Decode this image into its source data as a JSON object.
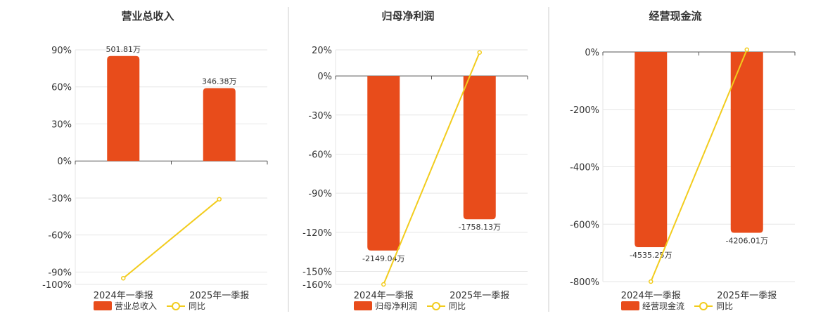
{
  "colors": {
    "bar": "#e84c1b",
    "line": "#f2cc1d",
    "grid": "#e6e6e6",
    "axis": "#555555",
    "divider": "#cccccc"
  },
  "legend_line_label": "同比",
  "chart_data": [
    {
      "type": "bar",
      "title": "营业总收入",
      "categories": [
        "2024年一季报",
        "2025年一季报"
      ],
      "series": [
        {
          "name": "营业总收入",
          "type": "bar",
          "values": [
            85,
            59
          ],
          "labels": [
            "501.81万",
            "346.38万"
          ]
        },
        {
          "name": "同比",
          "type": "line",
          "values": [
            -95,
            -31
          ]
        }
      ],
      "ylim": [
        -100,
        90
      ],
      "yticks": [
        90,
        60,
        30,
        0,
        -30,
        -60,
        -90,
        -100
      ],
      "ytick_labels": [
        "90%",
        "60%",
        "30%",
        "0%",
        "-30%",
        "-60%",
        "-90%",
        "-100%"
      ],
      "grid": true,
      "legend": "bottom"
    },
    {
      "type": "bar",
      "title": "归母净利润",
      "categories": [
        "2024年一季报",
        "2025年一季报"
      ],
      "series": [
        {
          "name": "归母净利润",
          "type": "bar",
          "values": [
            -134,
            -110
          ],
          "labels": [
            "-2149.04万",
            "-1758.13万"
          ]
        },
        {
          "name": "同比",
          "type": "line",
          "values": [
            -160,
            18
          ]
        }
      ],
      "ylim": [
        -160,
        20
      ],
      "yticks": [
        20,
        0,
        -30,
        -60,
        -90,
        -120,
        -150,
        -160
      ],
      "ytick_labels": [
        "20%",
        "0%",
        "-30%",
        "-60%",
        "-90%",
        "-120%",
        "-150%",
        "-160%"
      ],
      "grid": true,
      "legend": "bottom"
    },
    {
      "type": "bar",
      "title": "经营现金流",
      "categories": [
        "2024年一季报",
        "2025年一季报"
      ],
      "series": [
        {
          "name": "经营现金流",
          "type": "bar",
          "values": [
            -680,
            -630
          ],
          "labels": [
            "-4535.25万",
            "-4206.01万"
          ]
        },
        {
          "name": "同比",
          "type": "line",
          "values": [
            -800,
            8
          ]
        }
      ],
      "ylim": [
        -800,
        0
      ],
      "yticks": [
        0,
        -200,
        -400,
        -600,
        -800
      ],
      "ytick_labels": [
        "0%",
        "-200%",
        "-400%",
        "-600%",
        "-800%"
      ],
      "grid": true,
      "legend": "bottom"
    }
  ]
}
